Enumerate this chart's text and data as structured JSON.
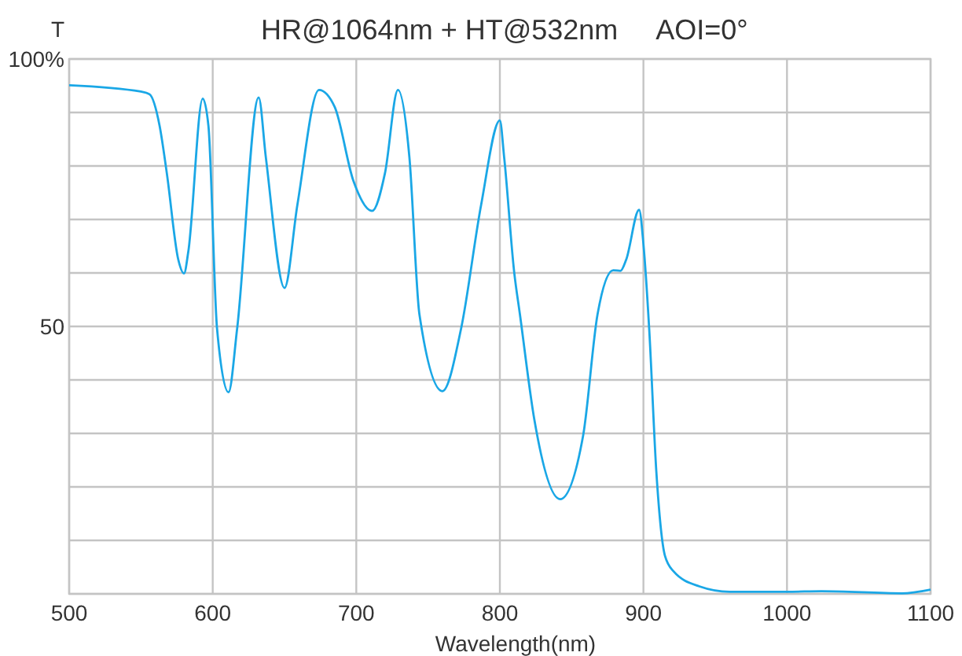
{
  "chart_data": {
    "type": "line",
    "title": "HR@1064nm + HT@532nm     AOI=0°",
    "xlabel": "Wavelength(nm)",
    "ylabel": "T",
    "xlim": [
      500,
      1100
    ],
    "xticks": [
      500,
      600,
      700,
      800,
      900,
      1000,
      1100
    ],
    "ylim": [
      0,
      100
    ],
    "yticks": [
      {
        "value": 0,
        "label": null
      },
      {
        "value": 10,
        "label": null
      },
      {
        "value": 20,
        "label": null
      },
      {
        "value": 30,
        "label": null
      },
      {
        "value": 40,
        "label": null
      },
      50,
      {
        "value": 60,
        "label": null
      },
      {
        "value": 70,
        "label": null
      },
      {
        "value": 80,
        "label": null
      },
      {
        "value": 90,
        "label": null
      },
      {
        "value": 100,
        "label": "100%"
      }
    ],
    "grid": true,
    "series": [
      {
        "color": "#1aa7e6",
        "x": [
          500,
          550,
          556,
          563,
          568,
          576,
          580,
          583,
          593,
          597,
          603,
          611,
          617,
          632,
          637,
          650,
          659,
          674,
          685,
          698,
          711,
          720,
          729,
          737,
          744,
          760,
          773,
          787,
          800,
          803,
          810,
          814,
          824,
          842,
          858,
          868,
          879,
          884,
          888,
          897,
          900,
          904,
          909,
          915,
          921,
          939,
          960,
          1000,
          1024,
          1080,
          1100
        ],
        "values": [
          95.1,
          93.9,
          93.4,
          87.5,
          78.7,
          62.5,
          59.9,
          64,
          92.6,
          87.5,
          49.6,
          37.7,
          49.6,
          92.8,
          81.6,
          57.2,
          72.8,
          94.2,
          91,
          77.2,
          71.6,
          78.7,
          94.2,
          81.6,
          52.2,
          37.9,
          49.6,
          72.8,
          88.5,
          81.6,
          60.1,
          52.2,
          32.6,
          17.7,
          29.6,
          52.2,
          60.5,
          60.4,
          62.5,
          71.8,
          65.4,
          49.6,
          22.8,
          7.1,
          4.2,
          1.4,
          0.4,
          0.4,
          0.5,
          0.1,
          0.8
        ]
      }
    ]
  }
}
